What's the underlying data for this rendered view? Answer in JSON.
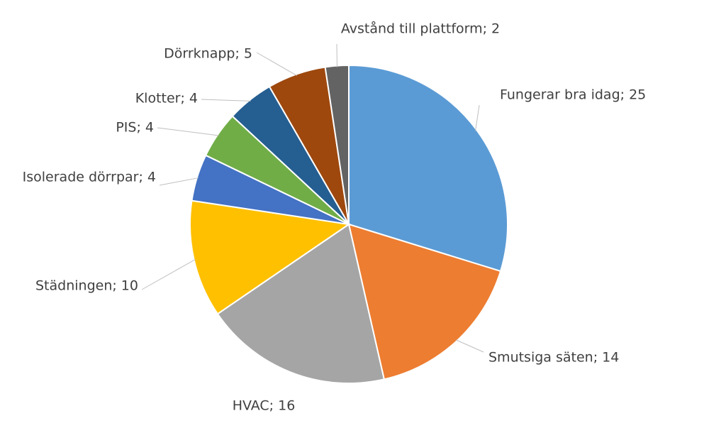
{
  "chart_data": {
    "type": "pie",
    "title": "",
    "start_angle_deg": 0,
    "direction": "clockwise",
    "legend": "none",
    "slices": [
      {
        "name": "Fungerar bra idag",
        "value": 25,
        "label": "Fungerar bra idag; 25",
        "color": "#5b9bd5"
      },
      {
        "name": "Smutsiga säten",
        "value": 14,
        "label": "Smutsiga säten; 14",
        "color": "#ed7d31"
      },
      {
        "name": "HVAC",
        "value": 16,
        "label": "HVAC; 16",
        "color": "#a5a5a5"
      },
      {
        "name": "Städningen",
        "value": 10,
        "label": "Städningen; 10",
        "color": "#ffc000"
      },
      {
        "name": "Isolerade dörrpar",
        "value": 4,
        "label": "Isolerade dörrpar; 4",
        "color": "#4472c4"
      },
      {
        "name": "PIS",
        "value": 4,
        "label": "PIS; 4",
        "color": "#70ad47"
      },
      {
        "name": "Klotter",
        "value": 4,
        "label": "Klotter; 4",
        "color": "#255e91"
      },
      {
        "name": "Dörrknapp",
        "value": 5,
        "label": "Dörrknapp; 5",
        "color": "#9e480e"
      },
      {
        "name": "Avstånd till plattform",
        "value": 2,
        "label": "Avstånd till plattform; 2",
        "color": "#636363"
      }
    ]
  }
}
